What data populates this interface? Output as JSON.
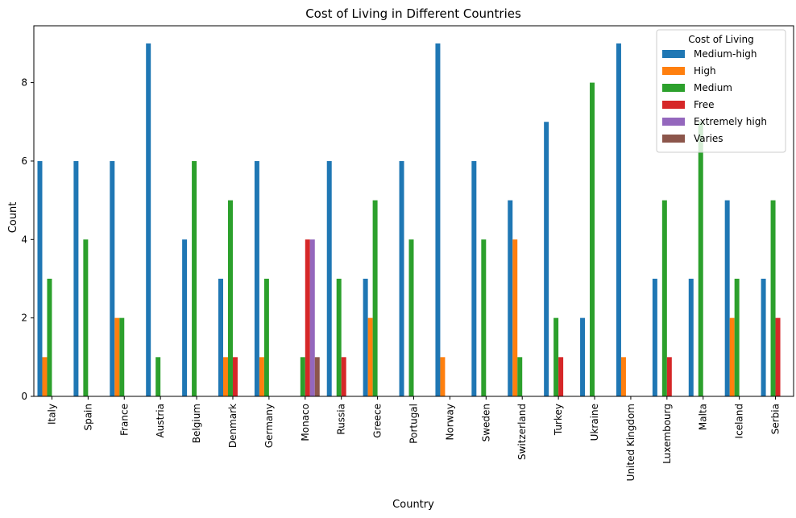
{
  "chart_data": {
    "type": "bar",
    "title": "Cost of Living in Different Countries",
    "xlabel": "Country",
    "ylabel": "Count",
    "ylim": [
      0,
      9.45
    ],
    "yticks": [
      0,
      2,
      4,
      6,
      8
    ],
    "grid": false,
    "legend": {
      "title": "Cost of Living",
      "placement": "top-right"
    },
    "categories": [
      "Italy",
      "Spain",
      "France",
      "Austria",
      "Belgium",
      "Denmark",
      "Germany",
      "Monaco",
      "Russia",
      "Greece",
      "Portugal",
      "Norway",
      "Sweden",
      "Switzerland",
      "Turkey",
      "Ukraine",
      "United Kingdom",
      "Luxembourg",
      "Malta",
      "Iceland",
      "Serbia"
    ],
    "series": [
      {
        "name": "Medium-high",
        "color": "#1f77b4",
        "values": [
          6,
          6,
          6,
          9,
          4,
          3,
          6,
          0,
          6,
          3,
          6,
          9,
          6,
          5,
          7,
          2,
          9,
          3,
          3,
          5,
          3
        ]
      },
      {
        "name": "High",
        "color": "#ff7f0e",
        "values": [
          1,
          0,
          2,
          0,
          0,
          1,
          1,
          0,
          0,
          2,
          0,
          1,
          0,
          4,
          0,
          0,
          1,
          0,
          0,
          2,
          0
        ]
      },
      {
        "name": "Medium",
        "color": "#2ca02c",
        "values": [
          3,
          4,
          2,
          1,
          6,
          5,
          3,
          1,
          3,
          5,
          4,
          0,
          4,
          1,
          2,
          8,
          0,
          5,
          7,
          3,
          5
        ]
      },
      {
        "name": "Free",
        "color": "#d62728",
        "values": [
          0,
          0,
          0,
          0,
          0,
          1,
          0,
          4,
          1,
          0,
          0,
          0,
          0,
          0,
          1,
          0,
          0,
          1,
          0,
          0,
          2
        ]
      },
      {
        "name": "Extremely high",
        "color": "#9467bd",
        "values": [
          0,
          0,
          0,
          0,
          0,
          0,
          0,
          4,
          0,
          0,
          0,
          0,
          0,
          0,
          0,
          0,
          0,
          0,
          0,
          0,
          0
        ]
      },
      {
        "name": "Varies",
        "color": "#8c564b",
        "values": [
          0,
          0,
          0,
          0,
          0,
          0,
          0,
          1,
          0,
          0,
          0,
          0,
          0,
          0,
          0,
          0,
          0,
          0,
          0,
          0,
          0
        ]
      }
    ]
  }
}
